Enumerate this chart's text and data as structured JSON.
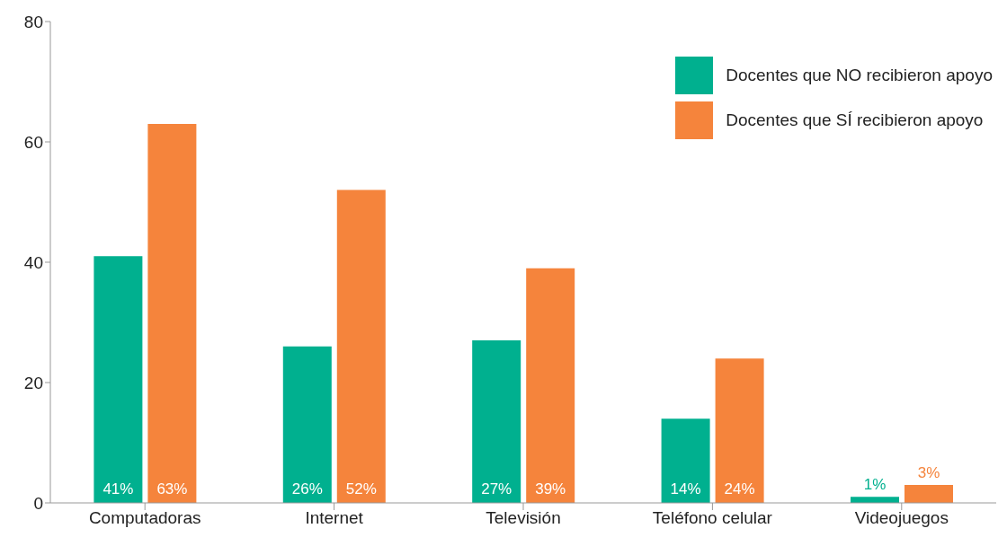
{
  "chart_data": {
    "type": "bar",
    "categories": [
      "Computadoras",
      "Internet",
      "Televisión",
      "Teléfono celular",
      "Videojuegos"
    ],
    "series": [
      {
        "name": "Docentes que NO recibieron apoyo",
        "color": "#00b08f",
        "values": [
          41,
          26,
          27,
          14,
          1
        ],
        "value_labels": [
          "41%",
          "26%",
          "27%",
          "14%",
          "1%"
        ]
      },
      {
        "name": "Docentes que SÍ recibieron apoyo",
        "color": "#f5843c",
        "values": [
          63,
          52,
          39,
          24,
          3
        ],
        "value_labels": [
          "63%",
          "52%",
          "39%",
          "24%",
          "3%"
        ]
      }
    ],
    "ylim": [
      0,
      80
    ],
    "yticks": [
      0,
      20,
      40,
      60,
      80
    ],
    "grid": false,
    "legend": "top right"
  }
}
